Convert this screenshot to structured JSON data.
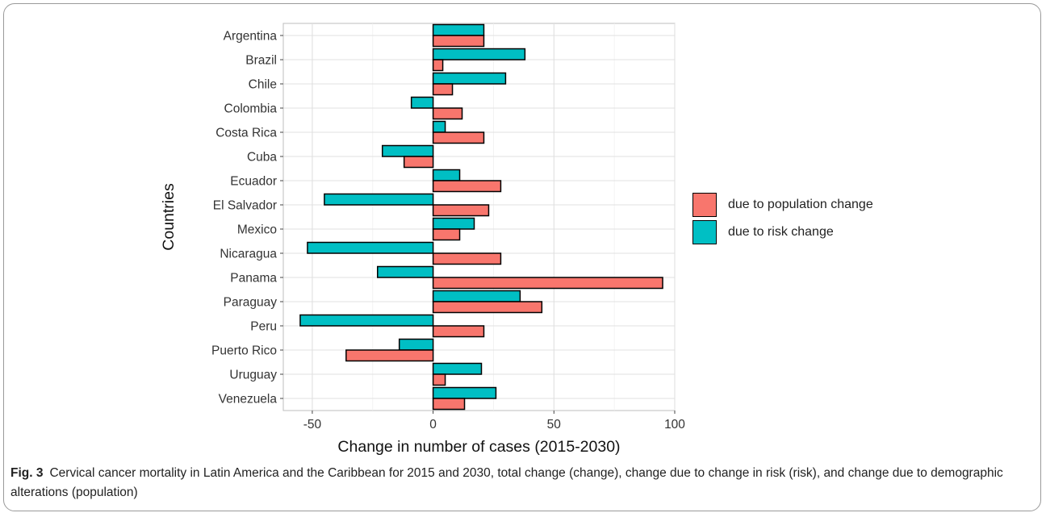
{
  "chart_data": {
    "type": "bar",
    "orientation": "horizontal",
    "xlabel": "Change in number of cases (2015-2030)",
    "ylabel": "Countries",
    "xlim": [
      -62,
      100
    ],
    "xticks": [
      -50,
      0,
      50,
      100
    ],
    "grid": true,
    "legend_position": "right",
    "categories": [
      "Argentina",
      "Brazil",
      "Chile",
      "Colombia",
      "Costa Rica",
      "Cuba",
      "Ecuador",
      "El Salvador",
      "Mexico",
      "Nicaragua",
      "Panama",
      "Paraguay",
      "Peru",
      "Puerto Rico",
      "Uruguay",
      "Venezuela"
    ],
    "series": [
      {
        "name": "due to population change",
        "color": "#F8766D",
        "values": [
          21,
          4,
          8,
          12,
          21,
          -12,
          28,
          23,
          11,
          28,
          95,
          45,
          21,
          -36,
          5,
          13
        ]
      },
      {
        "name": "due to risk change",
        "color": "#00BFC4",
        "values": [
          21,
          38,
          30,
          -9,
          5,
          -21,
          11,
          -45,
          17,
          -52,
          -23,
          36,
          -55,
          -14,
          20,
          26
        ]
      }
    ]
  },
  "caption": {
    "label": "Fig. 3",
    "text": "Cervical cancer mortality in Latin America and the Caribbean for 2015 and 2030, total change (change), change due to change in risk (risk), and change due to demographic alterations (population)"
  }
}
